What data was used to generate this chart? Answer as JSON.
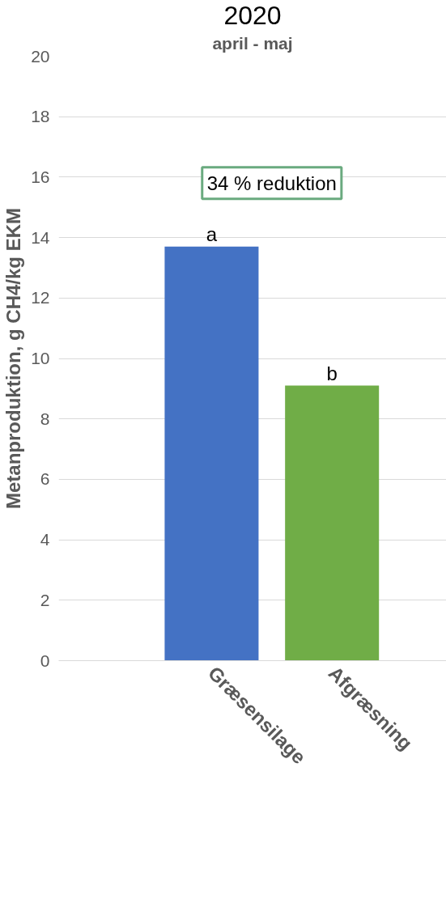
{
  "chart_data": {
    "type": "bar",
    "title": "2020",
    "subtitle": "april - maj",
    "ylabel": "Metanproduktion, g CH4/kg EKM",
    "categories": [
      "Græsensilage",
      "Afgræsning"
    ],
    "values": [
      13.7,
      9.1
    ],
    "colors": [
      "#4472c4",
      "#70ad47"
    ],
    "ylim": [
      0,
      20
    ],
    "yticks": [
      0,
      2,
      4,
      6,
      8,
      10,
      12,
      14,
      16,
      18,
      20
    ],
    "grid": "y",
    "annotations": [
      "34 % reduktion",
      {
        "text": "a",
        "x": "Græsensilage",
        "y": 13.7
      },
      {
        "text": "b",
        "x": "Afgræsning",
        "y": 9.1
      }
    ]
  }
}
